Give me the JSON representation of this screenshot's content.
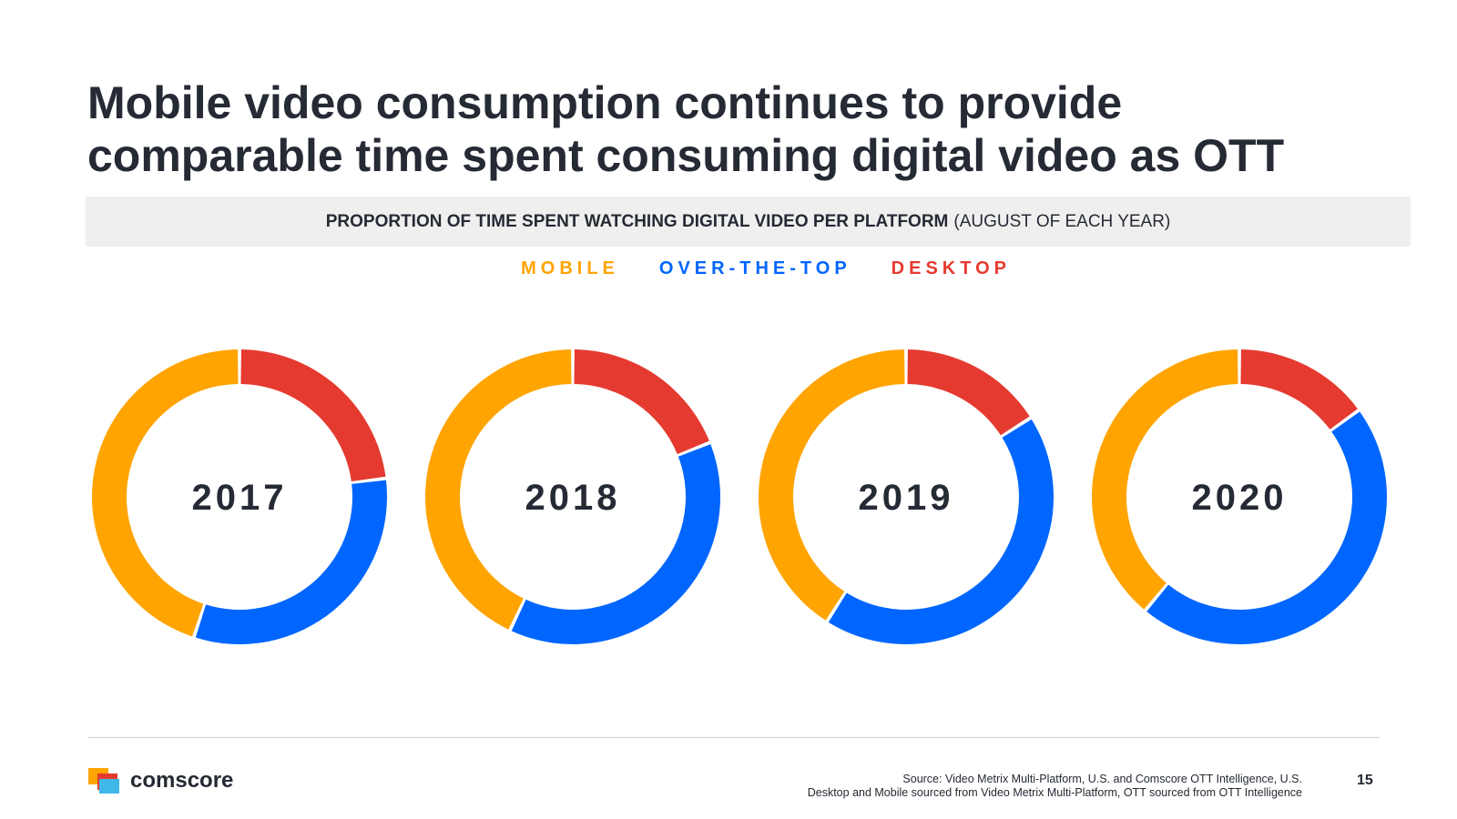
{
  "title_lines": [
    "Mobile video consumption continues to provide",
    "comparable time spent consuming digital video as OTT"
  ],
  "subtitle_bold": "PROPORTION OF TIME SPENT WATCHING DIGITAL VIDEO PER PLATFORM",
  "subtitle_light": "(AUGUST OF EACH YEAR)",
  "legend": {
    "mobile": "MOBILE",
    "ott": "OVER-THE-TOP",
    "desktop": "DESKTOP"
  },
  "colors": {
    "mobile": "#ffa400",
    "ott": "#0066ff",
    "desktop": "#e53a30"
  },
  "chart_data": {
    "type": "pie",
    "categories": [
      "Desktop",
      "Over-The-Top",
      "Mobile"
    ],
    "legend_position": "top",
    "charts": [
      {
        "label": "2017",
        "values": [
          23,
          32,
          45
        ]
      },
      {
        "label": "2018",
        "values": [
          19,
          38,
          43
        ]
      },
      {
        "label": "2019",
        "values": [
          16,
          43,
          41
        ]
      },
      {
        "label": "2020",
        "values": [
          15,
          46,
          39
        ]
      }
    ]
  },
  "footer": {
    "logo_text": "comscore",
    "source_line1": "Source: Video Metrix Multi-Platform, U.S. and Comscore OTT Intelligence, U.S.",
    "source_line2": "Desktop and Mobile sourced from Video Metrix Multi-Platform, OTT sourced from OTT Intelligence",
    "page_number": "15"
  }
}
